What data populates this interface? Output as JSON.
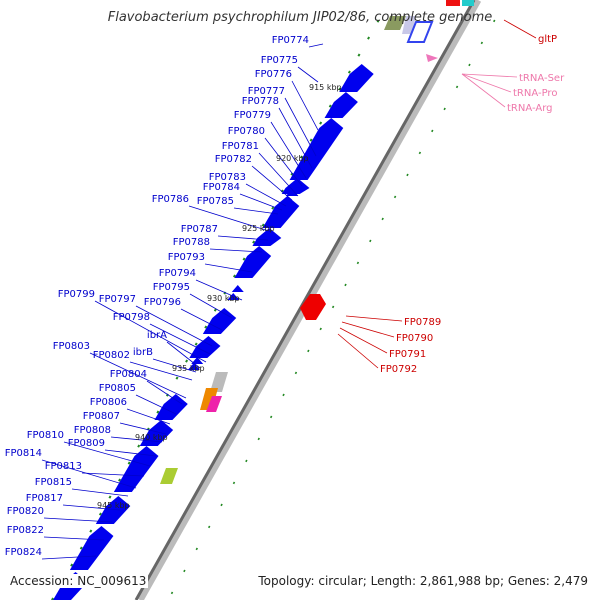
{
  "title": "Flavobacterium psychrophilum JIP02/86, complete genome",
  "footer": {
    "accession": "Accession: NC_009613",
    "topology": "Topology: circular; Length: 2,861,988 bp; Genes: 2,479"
  },
  "colors": {
    "gene_forward": "#0000ee",
    "gene_reverse": "#ee0000",
    "trna": "#ee88bb",
    "backbone": "#888888",
    "tick": "#228822",
    "label_forward": "#0000cc",
    "label_reverse": "#cc0000",
    "label_trna": "#ee77aa"
  },
  "kbp_ticks": [
    "915 kbp",
    "920 kbp",
    "925 kbp",
    "930 kbp",
    "935 kbp",
    "940 kbp",
    "945 kbp"
  ],
  "forward_genes": [
    "FP0774",
    "FP0775",
    "FP0776",
    "FP0777",
    "FP0778",
    "FP0779",
    "FP0780",
    "FP0781",
    "FP0782",
    "FP0783",
    "FP0784",
    "FP0785",
    "FP0786",
    "FP0787",
    "FP0788",
    "FP0793",
    "FP0794",
    "FP0795",
    "FP0796",
    "FP0797",
    "FP0798",
    "FP0799",
    "ibrA",
    "ibrB",
    "FP0802",
    "FP0803",
    "FP0804",
    "FP0805",
    "FP0806",
    "FP0807",
    "FP0808",
    "FP0809",
    "FP0810",
    "FP0813",
    "FP0814",
    "FP0815",
    "FP0817",
    "FP0820",
    "FP0822",
    "FP0824"
  ],
  "reverse_genes": [
    "gltP",
    "FP0789",
    "FP0790",
    "FP0791",
    "FP0792"
  ],
  "trna_genes": [
    "tRNA-Ser",
    "tRNA-Pro",
    "tRNA-Arg"
  ]
}
